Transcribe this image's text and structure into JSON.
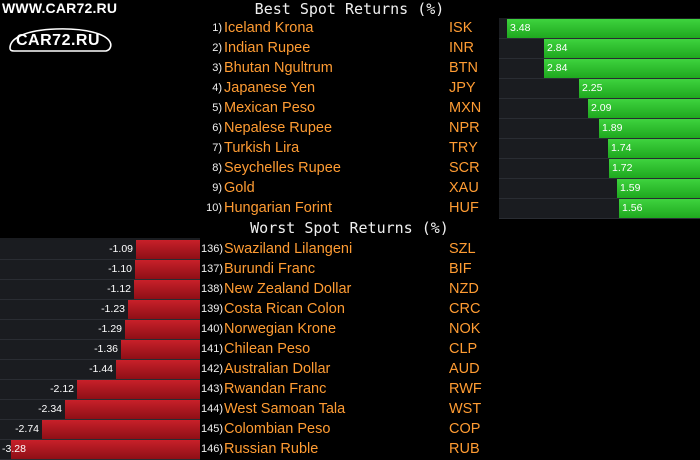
{
  "watermark": {
    "site_text": "WWW.CAR72.RU",
    "logo_text": "CAR72.RU"
  },
  "best": {
    "title": "Best Spot Returns (%)",
    "rows": [
      {
        "rank": "1)",
        "name": "Iceland Krona",
        "code": "ISK",
        "value": "3.48"
      },
      {
        "rank": "2)",
        "name": "Indian Rupee",
        "code": "INR",
        "value": "2.84"
      },
      {
        "rank": "3)",
        "name": "Bhutan Ngultrum",
        "code": "BTN",
        "value": "2.84"
      },
      {
        "rank": "4)",
        "name": "Japanese Yen",
        "code": "JPY",
        "value": "2.25"
      },
      {
        "rank": "5)",
        "name": "Mexican Peso",
        "code": "MXN",
        "value": "2.09"
      },
      {
        "rank": "6)",
        "name": "Nepalese Rupee",
        "code": "NPR",
        "value": "1.89"
      },
      {
        "rank": "7)",
        "name": "Turkish Lira",
        "code": "TRY",
        "value": "1.74"
      },
      {
        "rank": "8)",
        "name": "Seychelles Rupee",
        "code": "SCR",
        "value": "1.72"
      },
      {
        "rank": "9)",
        "name": "Gold",
        "code": "XAU",
        "value": "1.59"
      },
      {
        "rank": "10)",
        "name": "Hungarian Forint",
        "code": "HUF",
        "value": "1.56"
      }
    ]
  },
  "worst": {
    "title": "Worst Spot Returns (%)",
    "rows": [
      {
        "rank": "136)",
        "name": "Swaziland Lilangeni",
        "code": "SZL",
        "value": "-1.09"
      },
      {
        "rank": "137)",
        "name": "Burundi Franc",
        "code": "BIF",
        "value": "-1.10"
      },
      {
        "rank": "138)",
        "name": "New Zealand Dollar",
        "code": "NZD",
        "value": "-1.12"
      },
      {
        "rank": "139)",
        "name": "Costa Rican Colon",
        "code": "CRC",
        "value": "-1.23"
      },
      {
        "rank": "140)",
        "name": "Norwegian Krone",
        "code": "NOK",
        "value": "-1.29"
      },
      {
        "rank": "141)",
        "name": "Chilean Peso",
        "code": "CLP",
        "value": "-1.36"
      },
      {
        "rank": "142)",
        "name": "Australian Dollar",
        "code": "AUD",
        "value": "-1.44"
      },
      {
        "rank": "143)",
        "name": "Rwandan Franc",
        "code": "RWF",
        "value": "-2.12"
      },
      {
        "rank": "144)",
        "name": "West Samoan Tala",
        "code": "WST",
        "value": "-2.34"
      },
      {
        "rank": "145)",
        "name": "Colombian Peso",
        "code": "COP",
        "value": "-2.74"
      },
      {
        "rank": "146)",
        "name": "Russian Ruble",
        "code": "RUB",
        "value": "-3.28"
      }
    ]
  },
  "colors": {
    "positive": "#2fc02f",
    "negative": "#b51b24",
    "label": "#ff9c33",
    "text": "#f0f0f0"
  }
}
